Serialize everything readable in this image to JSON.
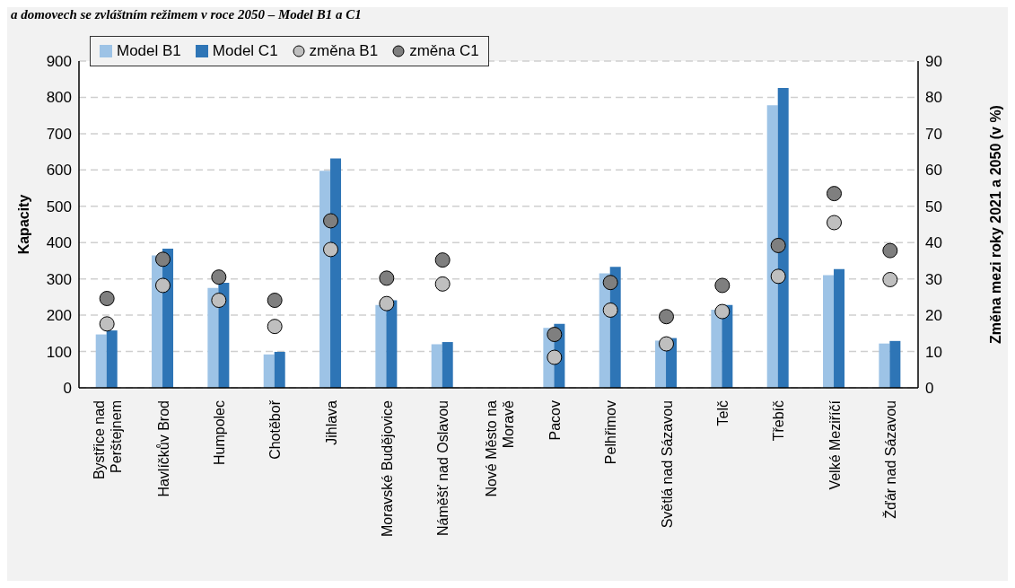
{
  "chart_data": {
    "type": "bar",
    "title": "a domovech se zvláštním režimem v roce 2050 – Model B1 a C1",
    "ylabel": "Kapacity",
    "y2label": "Změna mezi roky 2021 a 2050 (v %)",
    "categories": [
      "Bystřice nad Perštejnem",
      "Havlíčkův Brod",
      "Humpolec",
      "Chotěboř",
      "Jihlava",
      "Moravské Budějovice",
      "Náměšť nad Oslavou",
      "Nové Město na Moravě",
      "Pacov",
      "Pelhřimov",
      "Světlá nad Sázavou",
      "Telč",
      "Třebíč",
      "Velké Meziříčí",
      "Žďár nad Sázavou"
    ],
    "series": [
      {
        "name": "Model B1",
        "color": "#9dc3e6",
        "values": [
          147,
          365,
          275,
          92,
          598,
          228,
          120,
          null,
          165,
          315,
          130,
          215,
          778,
          310,
          122
        ]
      },
      {
        "name": "Model C1",
        "color": "#2e75b6",
        "values": [
          158,
          383,
          289,
          99,
          632,
          241,
          126,
          null,
          176,
          333,
          137,
          228,
          826,
          327,
          129
        ]
      },
      {
        "name": "změna B1",
        "type": "scatter",
        "axis": "y2",
        "color": "#bfbfbf",
        "values": [
          17.6,
          28.2,
          24.1,
          16.9,
          38.1,
          23.2,
          28.6,
          null,
          8.4,
          21.4,
          12.1,
          21,
          30.7,
          45.5,
          29.8
        ]
      },
      {
        "name": "změna C1",
        "type": "scatter",
        "axis": "y2",
        "color": "#7f7f7f",
        "values": [
          24.6,
          35.4,
          30.5,
          24.1,
          46,
          30.2,
          35.2,
          null,
          14.7,
          29,
          19.6,
          28.2,
          39.2,
          53.5,
          37.8
        ]
      }
    ],
    "ylim": [
      0,
      900
    ],
    "yticks": [
      0,
      100,
      200,
      300,
      400,
      500,
      600,
      700,
      800,
      900
    ],
    "y2lim": [
      0,
      90
    ],
    "y2ticks": [
      0,
      10,
      20,
      30,
      40,
      50,
      60,
      70,
      80,
      90
    ],
    "grid": "y",
    "legend": "top left",
    "marker": "circle"
  }
}
